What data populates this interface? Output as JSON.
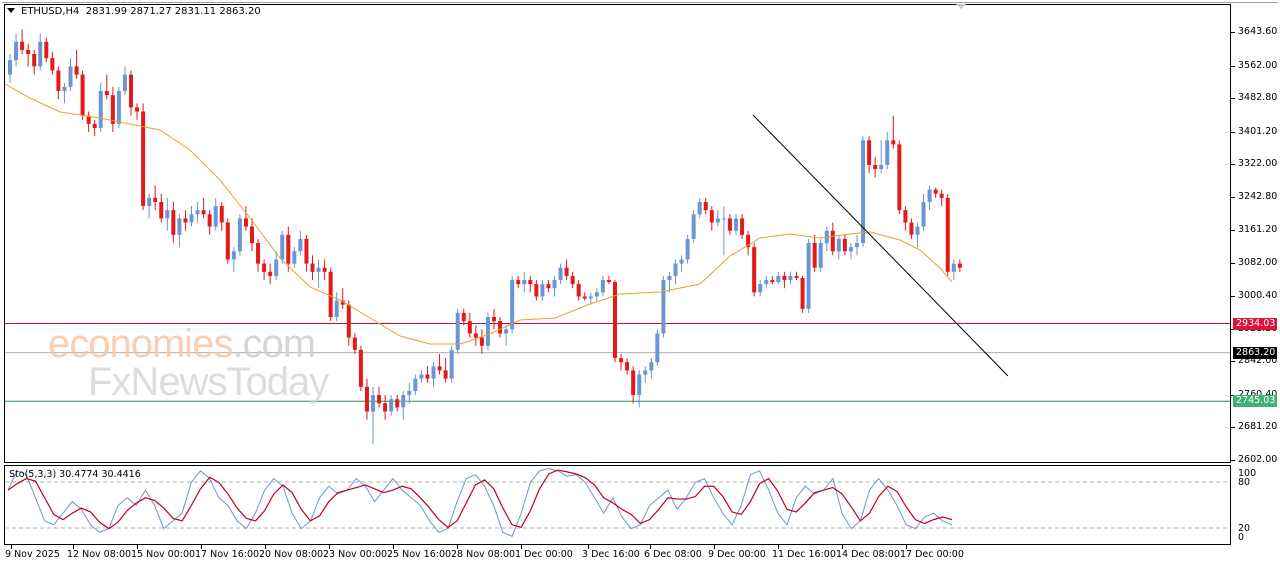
{
  "header": {
    "symbol_timeframe": "ETHUSD,H4",
    "ohlc": "2831.99 2871.27 2831.11 2863.20"
  },
  "indicator": {
    "label": "Sto(5,3,3) 30.4774 30.4416"
  },
  "price_axis": {
    "labels": [
      "3643.60",
      "3562.00",
      "3482.80",
      "3401.20",
      "3322.00",
      "3242.80",
      "3161.20",
      "3082.00",
      "3000.40",
      "2921.20",
      "2842.00",
      "2760.40",
      "2681.20",
      "2602.00"
    ]
  },
  "price_tags": [
    {
      "name": "resistance-tag",
      "value": "2934.03",
      "color": "#dc143c"
    },
    {
      "name": "current-price-tag",
      "value": "2863.20",
      "color": "#000000"
    },
    {
      "name": "support-tag",
      "value": "2745.03",
      "color": "#3cb371"
    }
  ],
  "stoch_axis": {
    "labels": [
      "100",
      "80",
      "20",
      "0"
    ]
  },
  "time_axis": {
    "labels": [
      "9 Nov 2025",
      "12 Nov 08:00",
      "15 Nov 00:00",
      "17 Nov 16:00",
      "20 Nov 08:00",
      "23 Nov 00:00",
      "25 Nov 16:00",
      "28 Nov 08:00",
      "1 Dec 00:00",
      "3 Dec 16:00",
      "6 Dec 08:00",
      "9 Dec 00:00",
      "11 Dec 16:00",
      "14 Dec 08:00",
      "17 Dec 00:00"
    ]
  },
  "watermark": {
    "line1_a": "economies",
    "line1_b": ".com",
    "line2": "FxNewsToday"
  },
  "colors": {
    "bull": "#6b96d6",
    "bear": "#e31a1a",
    "ma": "#e8a030",
    "resistance": "#c8102e",
    "support": "#2e8b57",
    "current": "#b0b0b0",
    "trendline": "#000000",
    "stoch_main": "#6b96d6",
    "stoch_signal": "#c00020"
  },
  "chart_data": {
    "type": "candlestick",
    "title": "ETHUSD,H4",
    "symbol": "ETHUSD",
    "timeframe": "H4",
    "last_ohlc": {
      "open": 2831.99,
      "high": 2871.27,
      "low": 2831.11,
      "close": 2863.2
    },
    "ylim": [
      2602.0,
      3660.0
    ],
    "grid": false,
    "horizontal_lines": [
      {
        "label": "resistance",
        "value": 2934.03
      },
      {
        "label": "current",
        "value": 2863.2
      },
      {
        "label": "support",
        "value": 2745.03
      }
    ],
    "trendline": {
      "from": {
        "date": "9 Dec 00:00",
        "price": 3440
      },
      "to": {
        "date": "~19 Dec",
        "price": 2810
      }
    },
    "moving_average_approx": [
      {
        "date": "9 Nov 2025",
        "value": 3500
      },
      {
        "date": "12 Nov 08:00",
        "value": 3420
      },
      {
        "date": "15 Nov 00:00",
        "value": 3330
      },
      {
        "date": "17 Nov 16:00",
        "value": 3200
      },
      {
        "date": "20 Nov 08:00",
        "value": 3060
      },
      {
        "date": "23 Nov 00:00",
        "value": 2960
      },
      {
        "date": "25 Nov 16:00",
        "value": 2900
      },
      {
        "date": "28 Nov 08:00",
        "value": 2930
      },
      {
        "date": "1 Dec 00:00",
        "value": 2960
      },
      {
        "date": "3 Dec 16:00",
        "value": 3000
      },
      {
        "date": "6 Dec 08:00",
        "value": 3020
      },
      {
        "date": "9 Dec 00:00",
        "value": 3090
      },
      {
        "date": "11 Dec 16:00",
        "value": 3160
      },
      {
        "date": "14 Dec 08:00",
        "value": 3165
      },
      {
        "date": "17 Dec 00:00",
        "value": 3110
      }
    ],
    "stochastic": {
      "params": "5,3,3",
      "main": 30.4774,
      "signal": 30.4416,
      "levels": [
        20,
        80
      ],
      "range": [
        0,
        100
      ]
    },
    "xlabels": [
      "9 Nov 2025",
      "12 Nov 08:00",
      "15 Nov 00:00",
      "17 Nov 16:00",
      "20 Nov 08:00",
      "23 Nov 00:00",
      "25 Nov 16:00",
      "28 Nov 08:00",
      "1 Dec 00:00",
      "3 Dec 16:00",
      "6 Dec 08:00",
      "9 Dec 00:00",
      "11 Dec 16:00",
      "14 Dec 08:00",
      "17 Dec 00:00"
    ],
    "candles_ohlc": [
      [
        3540,
        3590,
        3520,
        3575
      ],
      [
        3575,
        3640,
        3560,
        3620
      ],
      [
        3620,
        3650,
        3590,
        3600
      ],
      [
        3600,
        3615,
        3560,
        3590
      ],
      [
        3590,
        3600,
        3540,
        3560
      ],
      [
        3560,
        3640,
        3550,
        3620
      ],
      [
        3620,
        3630,
        3570,
        3580
      ],
      [
        3580,
        3595,
        3540,
        3550
      ],
      [
        3550,
        3560,
        3480,
        3500
      ],
      [
        3500,
        3520,
        3470,
        3510
      ],
      [
        3510,
        3580,
        3500,
        3560
      ],
      [
        3560,
        3600,
        3530,
        3540
      ],
      [
        3540,
        3550,
        3430,
        3440
      ],
      [
        3440,
        3450,
        3400,
        3420
      ],
      [
        3420,
        3430,
        3390,
        3410
      ],
      [
        3410,
        3520,
        3400,
        3500
      ],
      [
        3500,
        3540,
        3480,
        3490
      ],
      [
        3490,
        3510,
        3400,
        3420
      ],
      [
        3420,
        3510,
        3410,
        3500
      ],
      [
        3500,
        3560,
        3490,
        3540
      ],
      [
        3540,
        3550,
        3440,
        3460
      ],
      [
        3460,
        3470,
        3430,
        3450
      ],
      [
        3450,
        3470,
        3210,
        3220
      ],
      [
        3220,
        3250,
        3190,
        3240
      ],
      [
        3240,
        3270,
        3210,
        3230
      ],
      [
        3230,
        3250,
        3180,
        3190
      ],
      [
        3190,
        3240,
        3160,
        3210
      ],
      [
        3210,
        3230,
        3130,
        3150
      ],
      [
        3150,
        3200,
        3120,
        3190
      ],
      [
        3190,
        3210,
        3160,
        3180
      ],
      [
        3180,
        3220,
        3170,
        3200
      ],
      [
        3200,
        3230,
        3180,
        3210
      ],
      [
        3210,
        3240,
        3190,
        3200
      ],
      [
        3200,
        3210,
        3150,
        3170
      ],
      [
        3170,
        3240,
        3160,
        3220
      ],
      [
        3220,
        3230,
        3160,
        3180
      ],
      [
        3180,
        3190,
        3080,
        3090
      ],
      [
        3090,
        3120,
        3060,
        3110
      ],
      [
        3110,
        3200,
        3100,
        3190
      ],
      [
        3190,
        3220,
        3160,
        3170
      ],
      [
        3170,
        3190,
        3110,
        3130
      ],
      [
        3130,
        3140,
        3060,
        3080
      ],
      [
        3080,
        3090,
        3040,
        3060
      ],
      [
        3060,
        3080,
        3030,
        3050
      ],
      [
        3050,
        3110,
        3040,
        3090
      ],
      [
        3090,
        3160,
        3080,
        3150
      ],
      [
        3150,
        3170,
        3060,
        3080
      ],
      [
        3080,
        3120,
        3070,
        3110
      ],
      [
        3110,
        3160,
        3100,
        3140
      ],
      [
        3140,
        3150,
        3060,
        3080
      ],
      [
        3080,
        3100,
        3040,
        3060
      ],
      [
        3060,
        3090,
        3020,
        3070
      ],
      [
        3070,
        3090,
        3040,
        3060
      ],
      [
        3060,
        3070,
        2940,
        2950
      ],
      [
        2950,
        3010,
        2940,
        2990
      ],
      [
        2990,
        3020,
        2970,
        2980
      ],
      [
        2980,
        2990,
        2880,
        2900
      ],
      [
        2900,
        2910,
        2860,
        2870
      ],
      [
        2870,
        2880,
        2770,
        2780
      ],
      [
        2780,
        2800,
        2700,
        2720
      ],
      [
        2720,
        2780,
        2640,
        2760
      ],
      [
        2760,
        2780,
        2730,
        2740
      ],
      [
        2740,
        2760,
        2700,
        2720
      ],
      [
        2720,
        2760,
        2710,
        2750
      ],
      [
        2750,
        2760,
        2720,
        2730
      ],
      [
        2730,
        2770,
        2700,
        2760
      ],
      [
        2760,
        2790,
        2740,
        2770
      ],
      [
        2770,
        2810,
        2760,
        2800
      ],
      [
        2800,
        2820,
        2790,
        2810
      ],
      [
        2810,
        2830,
        2790,
        2800
      ],
      [
        2800,
        2840,
        2780,
        2830
      ],
      [
        2830,
        2860,
        2810,
        2820
      ],
      [
        2820,
        2850,
        2790,
        2800
      ],
      [
        2800,
        2880,
        2790,
        2870
      ],
      [
        2870,
        2970,
        2860,
        2960
      ],
      [
        2960,
        2970,
        2930,
        2940
      ],
      [
        2940,
        2960,
        2900,
        2910
      ],
      [
        2910,
        2930,
        2880,
        2900
      ],
      [
        2900,
        2920,
        2860,
        2880
      ],
      [
        2880,
        2960,
        2870,
        2950
      ],
      [
        2950,
        2970,
        2920,
        2940
      ],
      [
        2940,
        2950,
        2900,
        2910
      ],
      [
        2910,
        2930,
        2880,
        2920
      ],
      [
        2920,
        3050,
        2910,
        3040
      ],
      [
        3040,
        3050,
        3020,
        3030
      ],
      [
        3030,
        3060,
        3010,
        3040
      ],
      [
        3040,
        3050,
        3010,
        3030
      ],
      [
        3030,
        3040,
        2990,
        3000
      ],
      [
        3000,
        3040,
        2990,
        3030
      ],
      [
        3030,
        3040,
        3010,
        3020
      ],
      [
        3020,
        3050,
        3000,
        3040
      ],
      [
        3040,
        3080,
        3030,
        3070
      ],
      [
        3070,
        3090,
        3040,
        3050
      ],
      [
        3050,
        3060,
        3020,
        3030
      ],
      [
        3030,
        3040,
        2990,
        3000
      ],
      [
        3000,
        3010,
        2990,
        2995
      ],
      [
        2995,
        3010,
        2980,
        3000
      ],
      [
        3000,
        3020,
        2990,
        3010
      ],
      [
        3010,
        3050,
        3000,
        3040
      ],
      [
        3040,
        3050,
        3030,
        3035
      ],
      [
        3035,
        3040,
        2840,
        2850
      ],
      [
        2850,
        2860,
        2820,
        2840
      ],
      [
        2840,
        2850,
        2810,
        2820
      ],
      [
        2820,
        2830,
        2740,
        2760
      ],
      [
        2760,
        2820,
        2730,
        2810
      ],
      [
        2810,
        2830,
        2790,
        2820
      ],
      [
        2820,
        2850,
        2800,
        2840
      ],
      [
        2840,
        2920,
        2830,
        2910
      ],
      [
        2910,
        3050,
        2900,
        3040
      ],
      [
        3040,
        3060,
        3010,
        3050
      ],
      [
        3050,
        3090,
        3030,
        3080
      ],
      [
        3080,
        3100,
        3060,
        3090
      ],
      [
        3090,
        3150,
        3080,
        3140
      ],
      [
        3140,
        3210,
        3130,
        3200
      ],
      [
        3200,
        3240,
        3190,
        3230
      ],
      [
        3230,
        3240,
        3200,
        3210
      ],
      [
        3210,
        3220,
        3160,
        3180
      ],
      [
        3180,
        3210,
        3170,
        3190
      ],
      [
        3190,
        3220,
        3100,
        3190
      ],
      [
        3190,
        3200,
        3150,
        3160
      ],
      [
        3160,
        3200,
        3150,
        3190
      ],
      [
        3190,
        3200,
        3140,
        3150
      ],
      [
        3150,
        3160,
        3100,
        3120
      ],
      [
        3120,
        3130,
        3000,
        3010
      ],
      [
        3010,
        3040,
        3000,
        3030
      ],
      [
        3030,
        3050,
        3020,
        3040
      ],
      [
        3040,
        3050,
        3030,
        3035
      ],
      [
        3035,
        3060,
        3030,
        3050
      ],
      [
        3050,
        3060,
        3020,
        3040
      ],
      [
        3040,
        3060,
        3030,
        3050
      ],
      [
        3050,
        3060,
        3040,
        3045
      ],
      [
        3045,
        3050,
        2960,
        2970
      ],
      [
        2970,
        3140,
        2960,
        3130
      ],
      [
        3130,
        3150,
        3060,
        3070
      ],
      [
        3070,
        3140,
        3060,
        3130
      ],
      [
        3130,
        3170,
        3110,
        3160
      ],
      [
        3160,
        3180,
        3100,
        3110
      ],
      [
        3110,
        3150,
        3090,
        3140
      ],
      [
        3140,
        3150,
        3100,
        3110
      ],
      [
        3110,
        3130,
        3090,
        3120
      ],
      [
        3120,
        3150,
        3100,
        3130
      ],
      [
        3130,
        3390,
        3120,
        3380
      ],
      [
        3380,
        3390,
        3300,
        3320
      ],
      [
        3320,
        3340,
        3290,
        3310
      ],
      [
        3310,
        3380,
        3300,
        3320
      ],
      [
        3320,
        3400,
        3310,
        3380
      ],
      [
        3380,
        3440,
        3360,
        3370
      ],
      [
        3370,
        3380,
        3200,
        3210
      ],
      [
        3210,
        3220,
        3160,
        3180
      ],
      [
        3180,
        3190,
        3140,
        3150
      ],
      [
        3150,
        3180,
        3120,
        3170
      ],
      [
        3170,
        3250,
        3160,
        3230
      ],
      [
        3230,
        3270,
        3210,
        3260
      ],
      [
        3260,
        3265,
        3240,
        3250
      ],
      [
        3250,
        3260,
        3220,
        3240
      ],
      [
        3240,
        3250,
        3050,
        3060
      ],
      [
        3060,
        3090,
        3040,
        3080
      ],
      [
        3080,
        3090,
        3060,
        3070
      ]
    ]
  }
}
